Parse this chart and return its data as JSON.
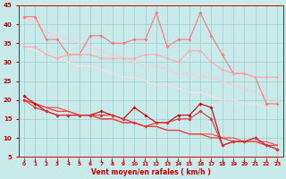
{
  "x": [
    0,
    1,
    2,
    3,
    4,
    5,
    6,
    7,
    8,
    9,
    10,
    11,
    12,
    13,
    14,
    15,
    16,
    17,
    18,
    19,
    20,
    21,
    22,
    23
  ],
  "line1_color": "#ff7777",
  "line1_data": [
    42,
    42,
    36,
    36,
    32,
    32,
    37,
    37,
    35,
    35,
    36,
    36,
    43,
    34,
    36,
    36,
    43,
    37,
    32,
    27,
    27,
    26,
    19,
    19
  ],
  "line2_color": "#ffaaaa",
  "line2_data": [
    34,
    34,
    32,
    31,
    32,
    32,
    32,
    31,
    31,
    31,
    31,
    32,
    32,
    31,
    30,
    33,
    33,
    30,
    28,
    27,
    27,
    26,
    26,
    26
  ],
  "line3_color": "#ffcccc",
  "line3_data": [
    42,
    40,
    38,
    37,
    36,
    35,
    34,
    33,
    32,
    31,
    30,
    29,
    29,
    28,
    27,
    27,
    26,
    26,
    25,
    24,
    23,
    22,
    21,
    20
  ],
  "line4_color": "#ffdddd",
  "line4_data": [
    34,
    33,
    32,
    31,
    30,
    29,
    29,
    28,
    27,
    26,
    26,
    25,
    24,
    24,
    23,
    22,
    22,
    21,
    20,
    20,
    19,
    19,
    18,
    18
  ],
  "line5_color": "#cc0000",
  "line5_data": [
    21,
    19,
    17,
    16,
    16,
    16,
    16,
    17,
    16,
    15,
    18,
    16,
    14,
    14,
    16,
    16,
    19,
    18,
    8,
    9,
    9,
    10,
    8,
    7
  ],
  "line6_color": "#dd3333",
  "line6_data": [
    20,
    18,
    17,
    16,
    16,
    16,
    16,
    16,
    16,
    15,
    14,
    13,
    14,
    14,
    15,
    15,
    17,
    15,
    8,
    9,
    9,
    10,
    8,
    7
  ],
  "line7_color": "#ff5555",
  "line7_data": [
    20,
    19,
    18,
    18,
    17,
    16,
    16,
    15,
    15,
    14,
    14,
    13,
    13,
    12,
    12,
    11,
    11,
    11,
    10,
    10,
    9,
    9,
    9,
    8
  ],
  "line8_color": "#ee4444",
  "line8_data": [
    20,
    19,
    18,
    17,
    17,
    16,
    16,
    15,
    15,
    14,
    14,
    13,
    13,
    12,
    12,
    11,
    11,
    10,
    10,
    9,
    9,
    9,
    8,
    8
  ],
  "xlabel": "Vent moyen/en rafales ( km/h )",
  "xlim_min": -0.5,
  "xlim_max": 23.5,
  "ylim_min": 5,
  "ylim_max": 45,
  "yticks": [
    5,
    10,
    15,
    20,
    25,
    30,
    35,
    40,
    45
  ],
  "xticks": [
    0,
    1,
    2,
    3,
    4,
    5,
    6,
    7,
    8,
    9,
    10,
    11,
    12,
    13,
    14,
    15,
    16,
    17,
    18,
    19,
    20,
    21,
    22,
    23
  ],
  "bg_color": "#c8eaea",
  "grid_color": "#a0cccc",
  "tick_color": "#cc0000",
  "label_color": "#cc0000",
  "marker": "D",
  "marker_size": 2.0,
  "lw_data": 0.8,
  "lw_trend": 0.9
}
